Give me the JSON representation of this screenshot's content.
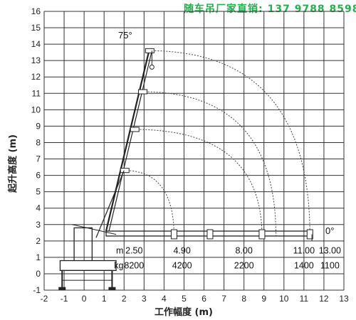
{
  "banner": {
    "title": "随车吊厂家直销:",
    "phone": "137 9788 8598"
  },
  "chart_data": {
    "type": "diagram",
    "xlabel": "工作幅度 (m)",
    "ylabel": "起升高度 (m)",
    "xlim": [
      -2,
      13
    ],
    "ylim": [
      -1,
      16
    ],
    "x_ticks": [
      "-2",
      "-1",
      "0",
      "1",
      "2",
      "3",
      "4",
      "5",
      "6",
      "7",
      "8",
      "9",
      "10",
      "11",
      "12",
      "13"
    ],
    "y_ticks": [
      "-1",
      "0",
      "1",
      "2",
      "3",
      "4",
      "5",
      "6",
      "7",
      "8",
      "9",
      "10",
      "11",
      "12",
      "13",
      "14",
      "15",
      "16"
    ],
    "angle_labels": {
      "max": "75°",
      "min": "0°"
    },
    "boom_pivot": [
      1.1,
      2.6
    ],
    "boom_sections_tips_75": [
      [
        2.0,
        6.3
      ],
      [
        2.5,
        8.8
      ],
      [
        2.9,
        11.1
      ],
      [
        3.25,
        13.6
      ]
    ],
    "reach_arcs": [
      {
        "radius_x": 4.5,
        "top_y": 6.3
      },
      {
        "radius_x": 8.9,
        "top_y": 8.8
      },
      {
        "radius_x": 9.6,
        "top_y": 11.1
      },
      {
        "radius_x": 11.3,
        "top_y": 13.6
      }
    ],
    "load_table": {
      "units": [
        "m",
        "kg"
      ],
      "radius_m": [
        "2.50",
        "4.90",
        "8.00",
        "11.00",
        "13.00"
      ],
      "load_kg": [
        "8200",
        "4200",
        "2200",
        "1400",
        "1100"
      ]
    }
  }
}
